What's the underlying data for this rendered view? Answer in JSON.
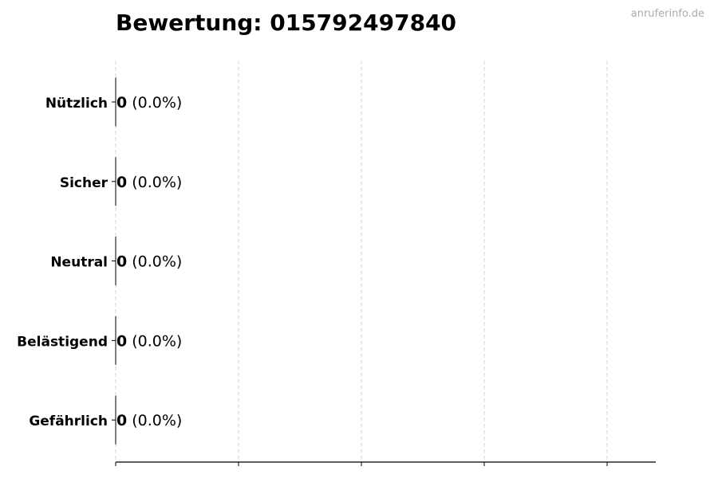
{
  "chart_data": {
    "type": "bar",
    "orientation": "horizontal",
    "title": "Bewertung: 015792497840",
    "watermark": "anruferinfo.de",
    "categories": [
      "Nützlich",
      "Sicher",
      "Neutral",
      "Belästigend",
      "Gefährlich"
    ],
    "values": [
      0,
      0,
      0,
      0,
      0
    ],
    "data_labels": [
      {
        "count": "0",
        "percent": "(0.0%)"
      },
      {
        "count": "0",
        "percent": "(0.0%)"
      },
      {
        "count": "0",
        "percent": "(0.0%)"
      },
      {
        "count": "0",
        "percent": "(0.0%)"
      },
      {
        "count": "0",
        "percent": "(0.0%)"
      }
    ],
    "xlabel": "",
    "ylabel": "",
    "x_tick_labels_shown": false,
    "grid": "vertical dashed",
    "colors": {
      "bar_edge": "#000000",
      "grid": "#cccccc",
      "watermark": "#aaaaaa"
    }
  }
}
